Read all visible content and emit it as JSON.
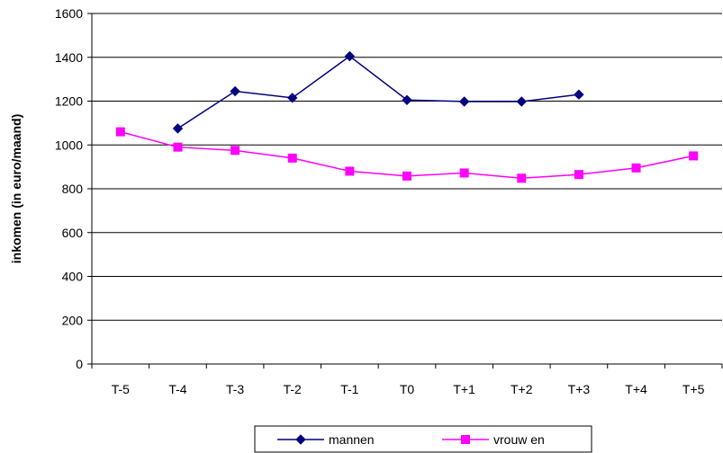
{
  "chart_data": {
    "type": "line",
    "title": "",
    "xlabel": "",
    "ylabel": "inkomen (in euro/maand)",
    "categories": [
      "T-5",
      "T-4",
      "T-3",
      "T-2",
      "T-1",
      "T0",
      "T+1",
      "T+2",
      "T+3",
      "T+4",
      "T+5"
    ],
    "ylim": [
      0,
      1600
    ],
    "yticks": [
      "0",
      "200",
      "400",
      "600",
      "800",
      "1000",
      "1200",
      "1400",
      "1600"
    ],
    "grid": true,
    "legend_position": "bottom",
    "series": [
      {
        "name": "mannen",
        "color": "#000080",
        "marker": "diamond",
        "values": [
          null,
          1075,
          1245,
          1215,
          1405,
          1205,
          1198,
          1198,
          1230,
          null,
          null
        ]
      },
      {
        "name": "vrouw en",
        "color": "#ff00ff",
        "marker": "square",
        "values": [
          1060,
          990,
          975,
          940,
          880,
          858,
          872,
          848,
          865,
          895,
          950
        ]
      }
    ]
  }
}
